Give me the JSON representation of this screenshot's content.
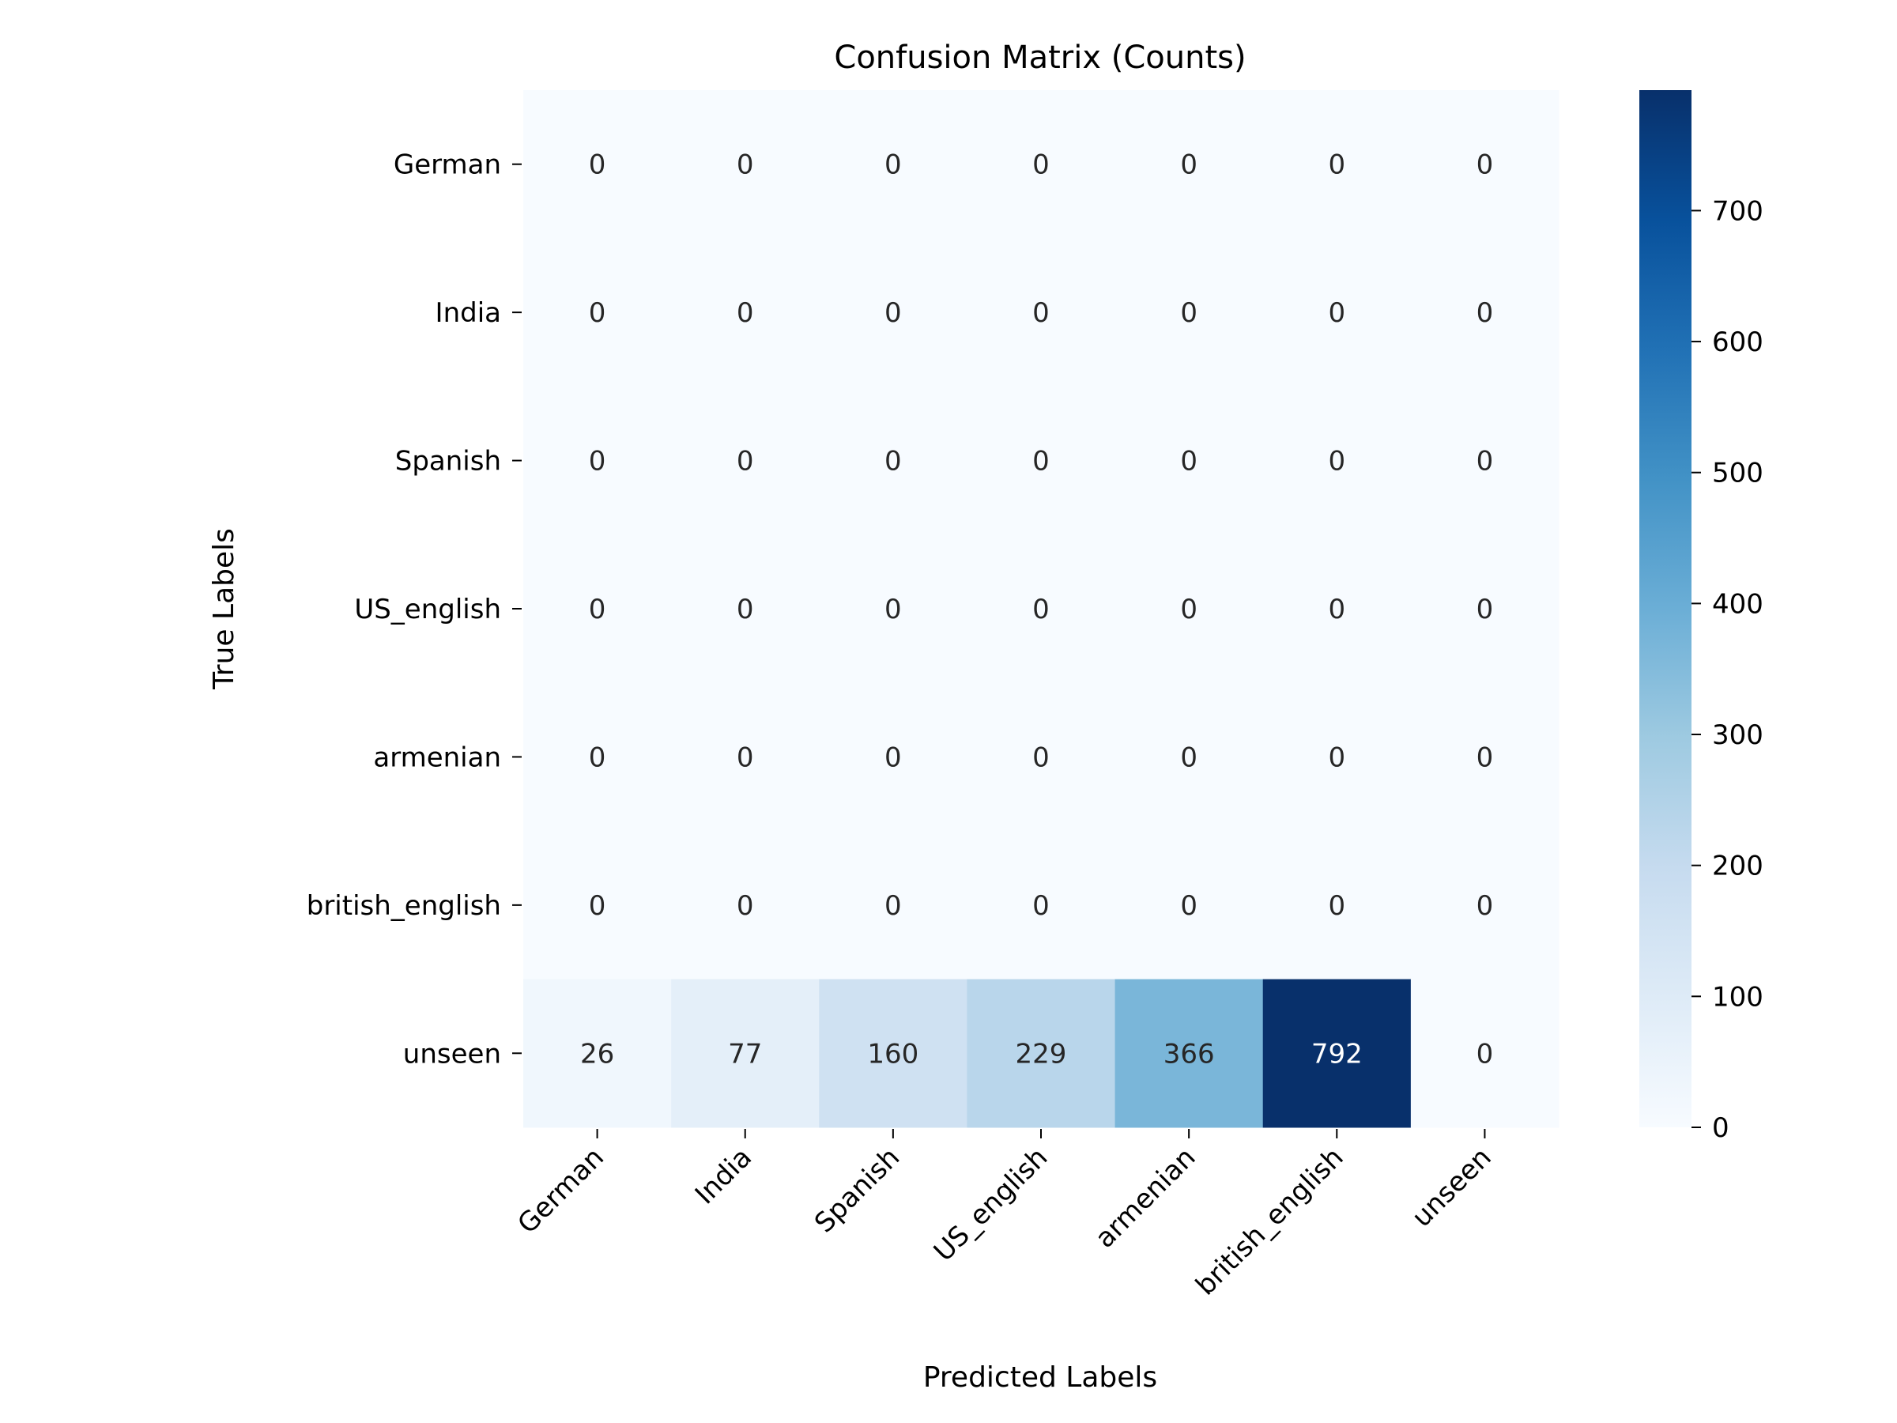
{
  "chart_data": {
    "type": "heatmap",
    "title": "Confusion Matrix (Counts)",
    "xlabel": "Predicted Labels",
    "ylabel": "True Labels",
    "row_labels": [
      "German",
      "India",
      "Spanish",
      "US_english",
      "armenian",
      "british_english",
      "unseen"
    ],
    "col_labels": [
      "German",
      "India",
      "Spanish",
      "US_english",
      "armenian",
      "british_english",
      "unseen"
    ],
    "values": [
      [
        0,
        0,
        0,
        0,
        0,
        0,
        0
      ],
      [
        0,
        0,
        0,
        0,
        0,
        0,
        0
      ],
      [
        0,
        0,
        0,
        0,
        0,
        0,
        0
      ],
      [
        0,
        0,
        0,
        0,
        0,
        0,
        0
      ],
      [
        0,
        0,
        0,
        0,
        0,
        0,
        0
      ],
      [
        0,
        0,
        0,
        0,
        0,
        0,
        0
      ],
      [
        26,
        77,
        160,
        229,
        366,
        792,
        0
      ]
    ],
    "colormap": "Blues",
    "colorbar": {
      "range": [
        0,
        792
      ],
      "ticks": [
        0,
        100,
        200,
        300,
        400,
        500,
        600,
        700
      ]
    },
    "annotation_colors": {
      "light": "#ffffff",
      "dark": "#262626"
    }
  }
}
